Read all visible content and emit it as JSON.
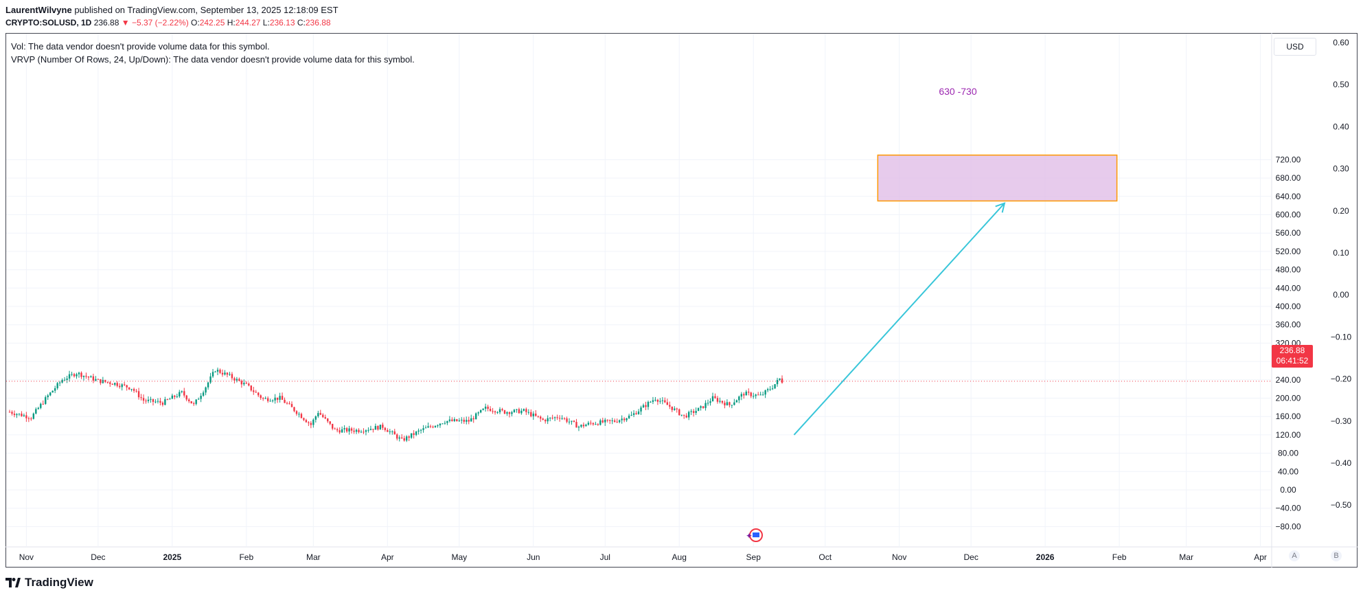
{
  "header": {
    "author": "LaurentWilvyne",
    "published": "published on TradingView.com, September 13, 2025 12:18:09 EST",
    "symbol": "CRYPTO:SOLUSD, 1D",
    "last": "236.88",
    "change": "▼ −5.37 (−2.22%)",
    "o_label": "O:",
    "o_value": "242.25",
    "h_label": "H:",
    "h_value": "244.27",
    "l_label": "L:",
    "l_value": "236.13",
    "c_label": "C:",
    "c_value": "236.88"
  },
  "notes": {
    "vol": "Vol: The data vendor doesn't provide volume data for this symbol.",
    "vrvp": "VRVP (Number Of Rows, 24, Up/Down): The data vendor doesn't provide volume data for this symbol."
  },
  "currency": "USD",
  "price_badge": {
    "price": "236.88",
    "countdown": "06:41:52"
  },
  "footer": {
    "brand": "TradingView"
  },
  "scale_buttons": {
    "a": "A",
    "b": "B"
  },
  "colors": {
    "up": "#089981",
    "down": "#f23645",
    "arrow": "#38c6d9",
    "box_fill": "#e1bee7",
    "box_border": "#ff9800",
    "box_text": "#9c27b0"
  },
  "chart_data": {
    "type": "candlestick",
    "x_ticks": [
      "Nov",
      "Dec",
      "2025",
      "Feb",
      "Mar",
      "Apr",
      "May",
      "Jun",
      "Jul",
      "Aug",
      "Sep",
      "Oct",
      "Nov",
      "Dec",
      "2026",
      "Feb",
      "Mar",
      "Apr"
    ],
    "y_ticks": [
      "720.00",
      "680.00",
      "640.00",
      "600.00",
      "560.00",
      "520.00",
      "480.00",
      "440.00",
      "400.00",
      "360.00",
      "320.00",
      "280.00",
      "240.00",
      "200.00",
      "160.00",
      "120.00",
      "80.00",
      "40.00",
      "0.00",
      "−40.00",
      "−80.00"
    ],
    "y_ticks_right": [
      "0.60",
      "0.50",
      "0.40",
      "0.30",
      "0.20",
      "0.10",
      "0.00",
      "−0.10",
      "−0.20",
      "−0.30",
      "−0.40",
      "−0.50"
    ],
    "ylim": [
      -100,
      780
    ],
    "last_price": 236.88,
    "series": [
      {
        "type": "close_path",
        "points": [
          [
            "2024-10-25",
            170
          ],
          [
            "2024-11-03",
            158
          ],
          [
            "2024-11-10",
            205
          ],
          [
            "2024-11-16",
            240
          ],
          [
            "2024-11-22",
            255
          ],
          [
            "2024-12-01",
            238
          ],
          [
            "2024-12-08",
            232
          ],
          [
            "2024-12-15",
            222
          ],
          [
            "2024-12-20",
            195
          ],
          [
            "2024-12-28",
            190
          ],
          [
            "2025-01-05",
            212
          ],
          [
            "2025-01-10",
            185
          ],
          [
            "2025-01-15",
            225
          ],
          [
            "2025-01-19",
            262
          ],
          [
            "2025-01-25",
            248
          ],
          [
            "2025-02-01",
            228
          ],
          [
            "2025-02-08",
            198
          ],
          [
            "2025-02-15",
            200
          ],
          [
            "2025-02-22",
            170
          ],
          [
            "2025-02-28",
            142
          ],
          [
            "2025-03-03",
            170
          ],
          [
            "2025-03-10",
            130
          ],
          [
            "2025-03-20",
            130
          ],
          [
            "2025-03-30",
            138
          ],
          [
            "2025-04-07",
            108
          ],
          [
            "2025-04-15",
            130
          ],
          [
            "2025-04-25",
            150
          ],
          [
            "2025-05-05",
            150
          ],
          [
            "2025-05-12",
            178
          ],
          [
            "2025-05-20",
            170
          ],
          [
            "2025-05-28",
            172
          ],
          [
            "2025-06-05",
            152
          ],
          [
            "2025-06-12",
            160
          ],
          [
            "2025-06-20",
            138
          ],
          [
            "2025-06-25",
            145
          ],
          [
            "2025-07-05",
            150
          ],
          [
            "2025-07-12",
            162
          ],
          [
            "2025-07-22",
            200
          ],
          [
            "2025-07-28",
            182
          ],
          [
            "2025-08-03",
            160
          ],
          [
            "2025-08-10",
            178
          ],
          [
            "2025-08-15",
            200
          ],
          [
            "2025-08-22",
            185
          ],
          [
            "2025-08-28",
            210
          ],
          [
            "2025-09-04",
            205
          ],
          [
            "2025-09-09",
            225
          ],
          [
            "2025-09-12",
            242
          ],
          [
            "2025-09-13",
            236.88
          ]
        ]
      }
    ],
    "annotations": {
      "target_box": {
        "label": "630 -730",
        "y_low": 630,
        "y_high": 730,
        "x_start": "2025-10-23",
        "x_end": "2026-01-31"
      },
      "arrow": {
        "from": [
          "2025-09-18",
          120
        ],
        "to": [
          "2025-12-15",
          625
        ]
      }
    }
  }
}
